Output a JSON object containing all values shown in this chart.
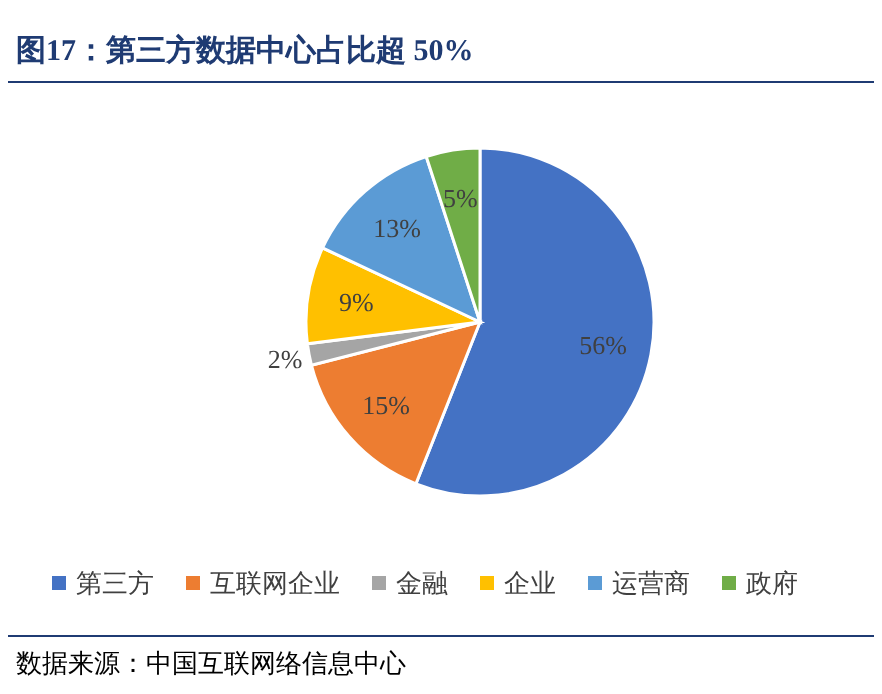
{
  "chart_data": {
    "type": "pie",
    "title": "图17：第三方数据中心占比超 50%",
    "categories": [
      "第三方",
      "互联网企业",
      "金融",
      "企业",
      "运营商",
      "政府"
    ],
    "values": [
      56,
      15,
      2,
      9,
      13,
      5
    ],
    "colors": [
      "#4472c4",
      "#ed7d31",
      "#a5a5a5",
      "#ffc000",
      "#5b9bd5",
      "#70ad47"
    ],
    "value_labels": [
      "56%",
      "15%",
      "2%",
      "9%",
      "13%",
      "5%"
    ],
    "legend": "bottom",
    "annotations": [
      "数据来源：中国互联网络信息中心"
    ]
  }
}
